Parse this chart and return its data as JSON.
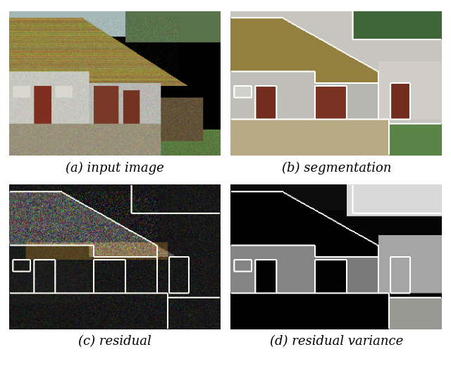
{
  "captions": [
    "(a) input image",
    "(b) segmentation",
    "(c) residual",
    "(d) residual variance"
  ],
  "caption_fontsize": 13,
  "background_color": "#ffffff",
  "figure_width": 6.4,
  "figure_height": 5.2,
  "dpi": 100
}
